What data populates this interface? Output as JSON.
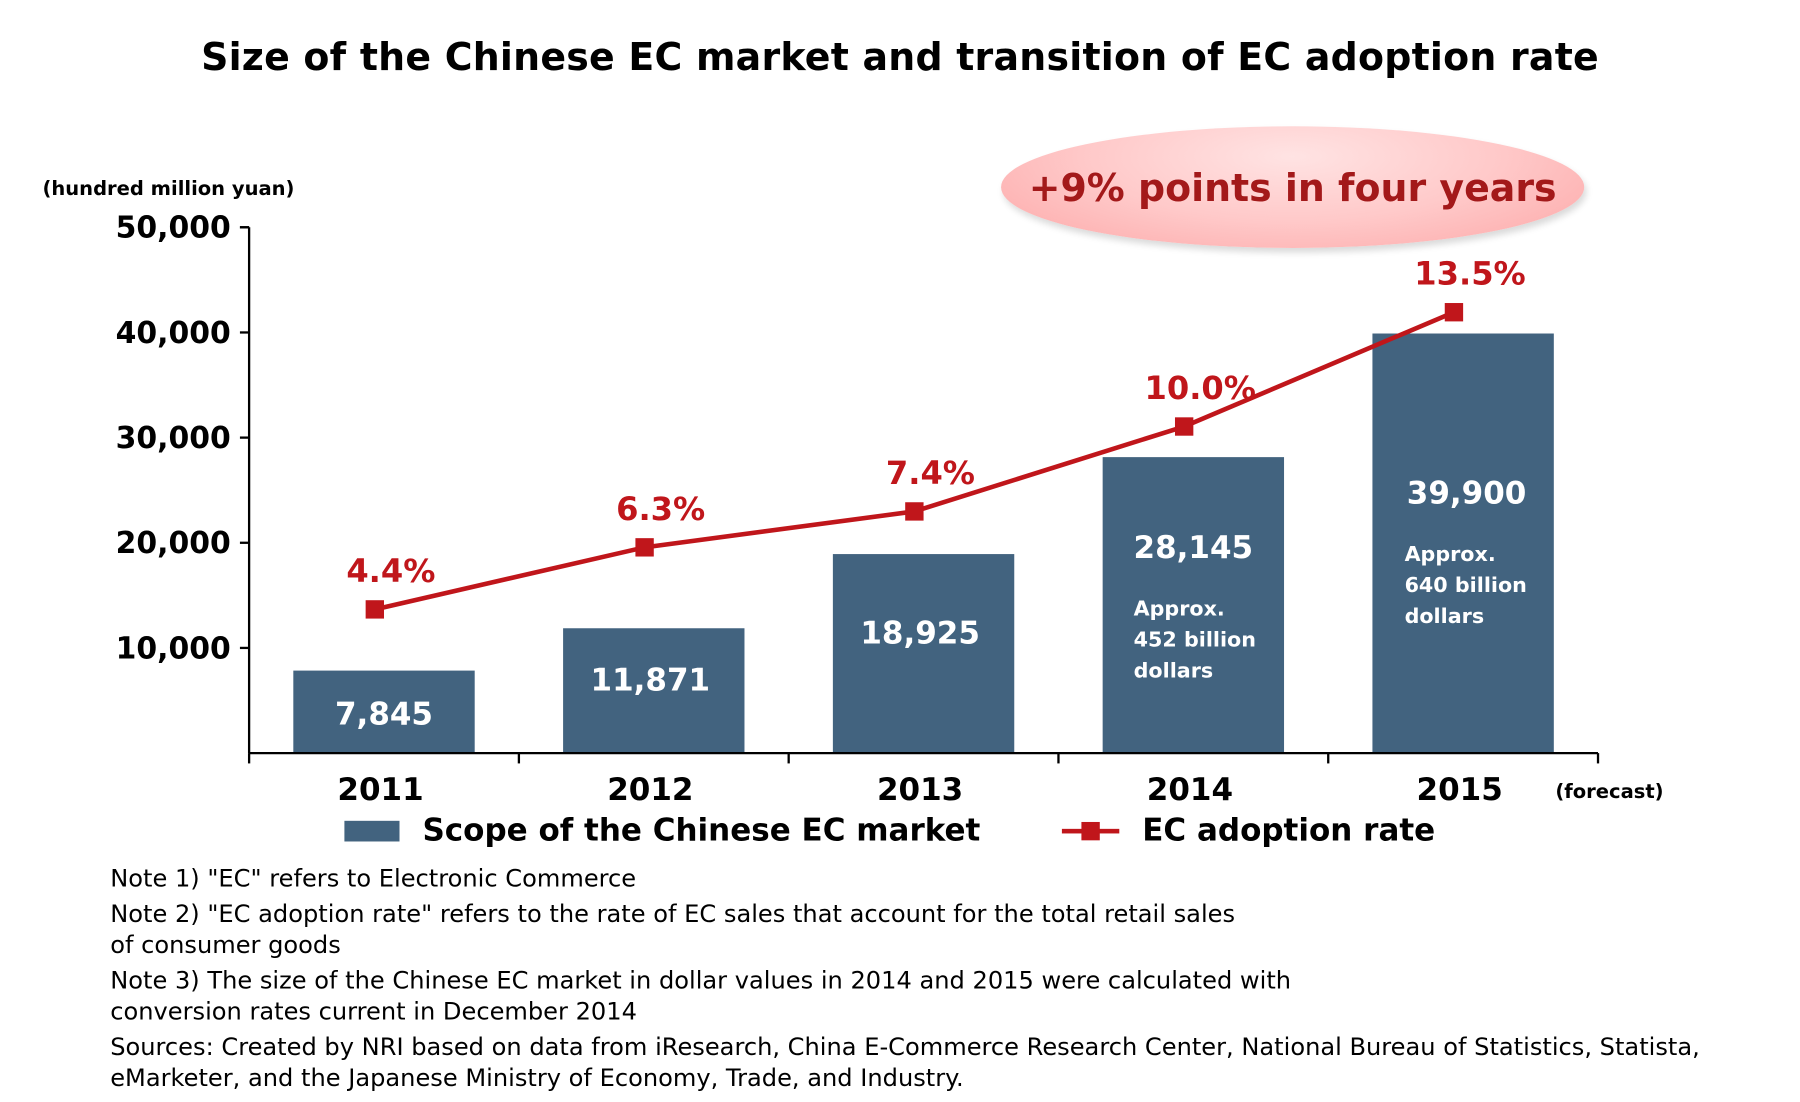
{
  "title": "Size of the Chinese EC market and transition of EC adoption rate",
  "callout": "+9% points in four years",
  "notes": [
    "Note 1) \"EC\" refers to Electronic Commerce",
    "Note 2) \"EC adoption rate\" refers to the rate of EC sales that account for the total retail sales of consumer goods",
    "Note 3) The size of the Chinese EC market in dollar values in 2014 and 2015 were calculated with conversion rates current in December 2014",
    "Sources: Created by NRI based on data from iResearch, China E-Commerce Research Center, National Bureau of Statistics, Statista, eMarketer, and the Japanese Ministry of Economy, Trade, and Industry."
  ],
  "colors": {
    "bar": "#42637f",
    "line": "#c0161b",
    "callout_text": "#a3191a"
  },
  "chart_data": {
    "type": "bar",
    "title": "Size of the Chinese EC market and transition of EC adoption rate",
    "xlabel": "",
    "ylabel": "(hundred million yuan)",
    "ylim": [
      0,
      50000
    ],
    "yticks": [
      10000,
      20000,
      30000,
      40000,
      50000
    ],
    "ytick_labels": [
      "10,000",
      "20,000",
      "30,000",
      "40,000",
      "50,000"
    ],
    "y2lim": [
      0,
      16.1
    ],
    "categories": [
      "2011",
      "2012",
      "2013",
      "2014",
      "2015"
    ],
    "x_suffix_label": "(forecast)",
    "grid": false,
    "legend_position": "bottom",
    "series": [
      {
        "name": "Scope of the Chinese EC market",
        "type": "bar",
        "axis": "left",
        "values": [
          7845,
          11871,
          18925,
          28145,
          39900
        ],
        "labels": [
          "7,845",
          "11,871",
          "18,925",
          "28,145",
          "39,900"
        ],
        "notes": [
          null,
          null,
          null,
          [
            "Approx.",
            "452 billion",
            "dollars"
          ],
          [
            "Approx.",
            "640 billion",
            "dollars"
          ]
        ]
      },
      {
        "name": "EC adoption rate",
        "type": "line",
        "axis": "right",
        "unit": "%",
        "values": [
          4.4,
          6.3,
          7.4,
          10.0,
          13.5
        ],
        "labels": [
          "4.4%",
          "6.3%",
          "7.4%",
          "10.0%",
          "13.5%"
        ]
      }
    ]
  }
}
